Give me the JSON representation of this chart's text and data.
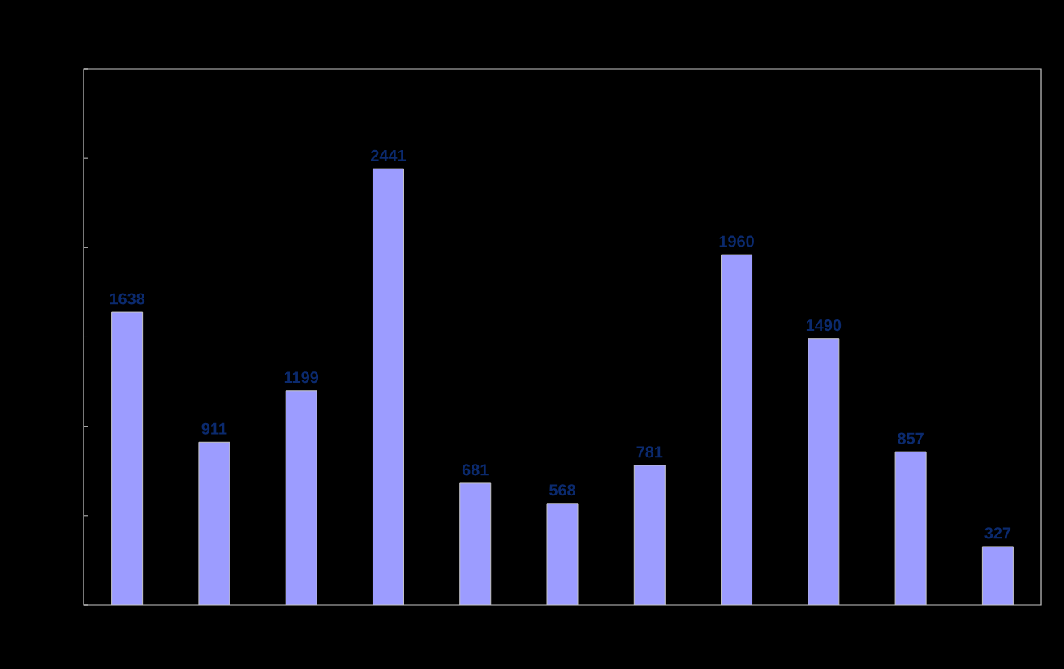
{
  "chart_data": {
    "type": "bar",
    "categories": [
      null,
      null,
      null,
      null,
      null,
      null,
      null,
      null,
      null,
      null,
      null
    ],
    "values": [
      1638,
      911,
      1199,
      2441,
      681,
      568,
      781,
      1960,
      1490,
      857,
      327
    ],
    "color": "#9c9cff",
    "data_labels": true,
    "ylim": [
      0,
      3000
    ],
    "yticks": [
      {
        "value": 0,
        "label": null
      },
      {
        "value": 500,
        "label": null
      },
      {
        "value": 1000,
        "label": null
      },
      {
        "value": 1500,
        "label": null
      },
      {
        "value": 2000,
        "label": null
      },
      {
        "value": 2500,
        "label": null
      },
      {
        "value": 3000,
        "label": null
      }
    ],
    "grid": false
  }
}
